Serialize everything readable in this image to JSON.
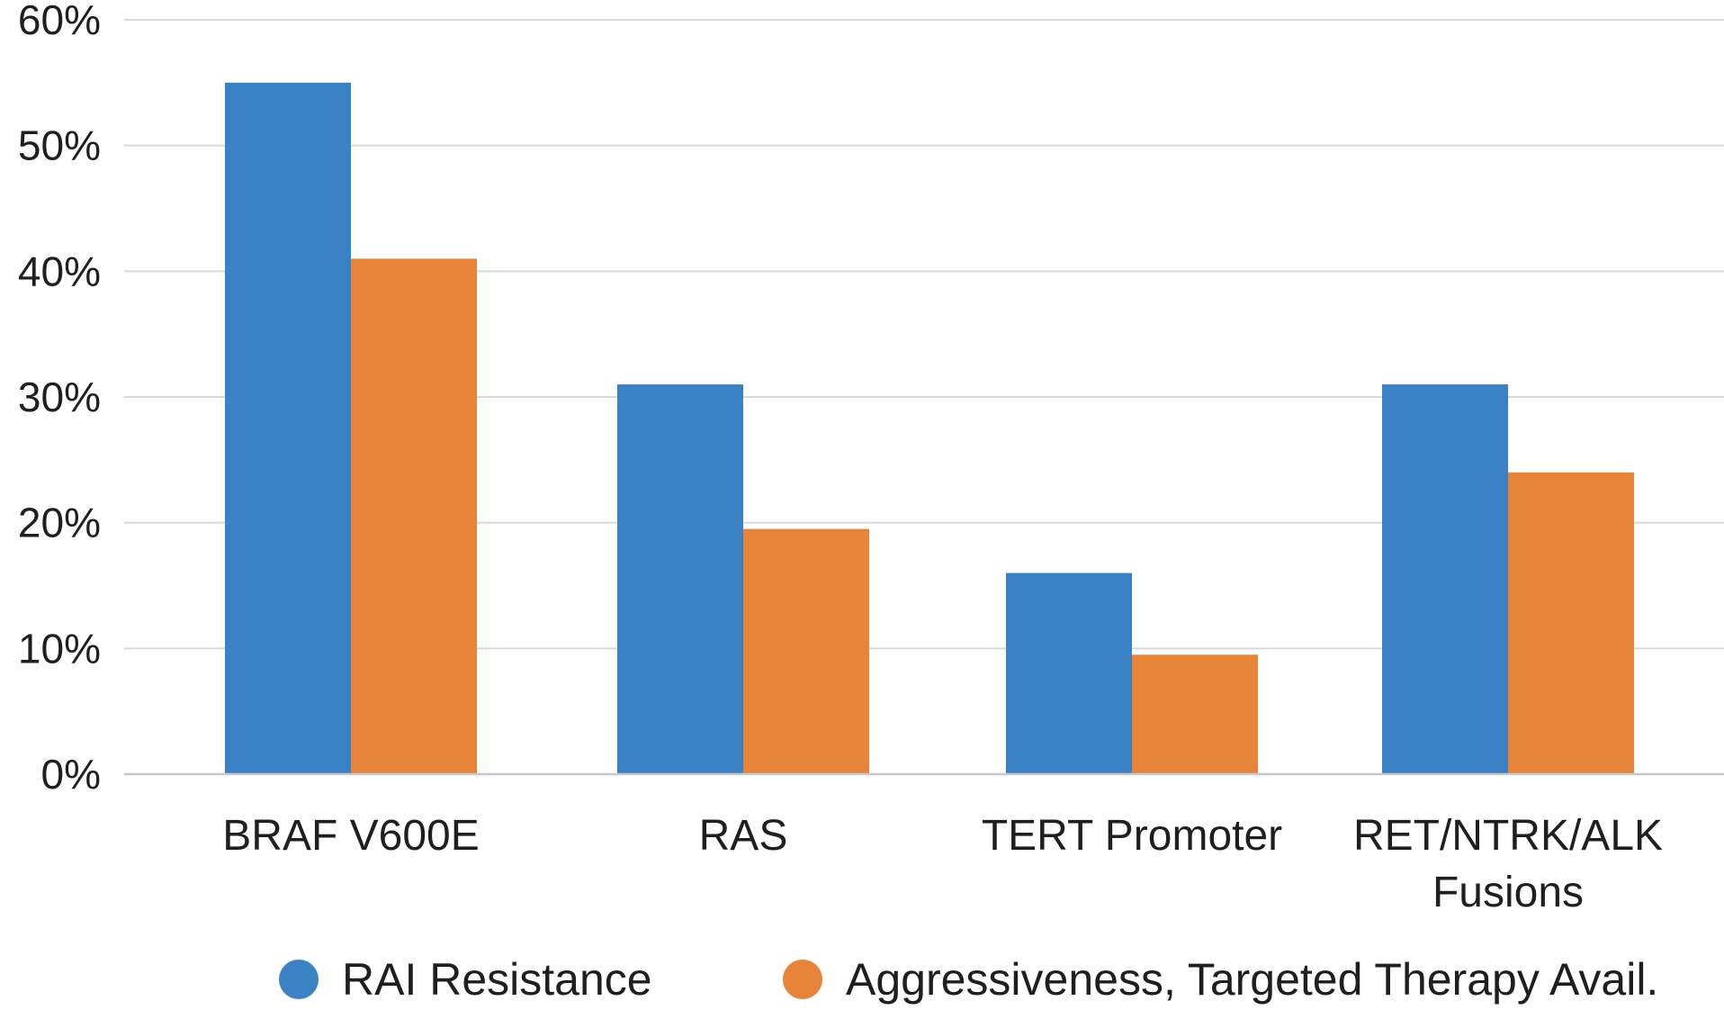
{
  "chart_data": {
    "type": "bar",
    "title": "",
    "xlabel": "",
    "ylabel": "",
    "ylim": [
      0,
      60
    ],
    "yticks": [
      0,
      10,
      20,
      30,
      40,
      50,
      60
    ],
    "ytick_format": "{v}%",
    "grid": true,
    "legend_position": "bottom",
    "categories": [
      [
        "BRAF V600E"
      ],
      [
        "RAS"
      ],
      [
        "TERT Promoter"
      ],
      [
        "RET/NTRK/ALK",
        "Fusions"
      ]
    ],
    "series": [
      {
        "name": "RAI Resistance",
        "color": "#3a82c4",
        "values": [
          55,
          31,
          16,
          31
        ]
      },
      {
        "name": "Aggressiveness, Targeted Therapy Avail.",
        "color": "#e6853a",
        "values": [
          41,
          19.5,
          9.5,
          24
        ]
      }
    ]
  }
}
